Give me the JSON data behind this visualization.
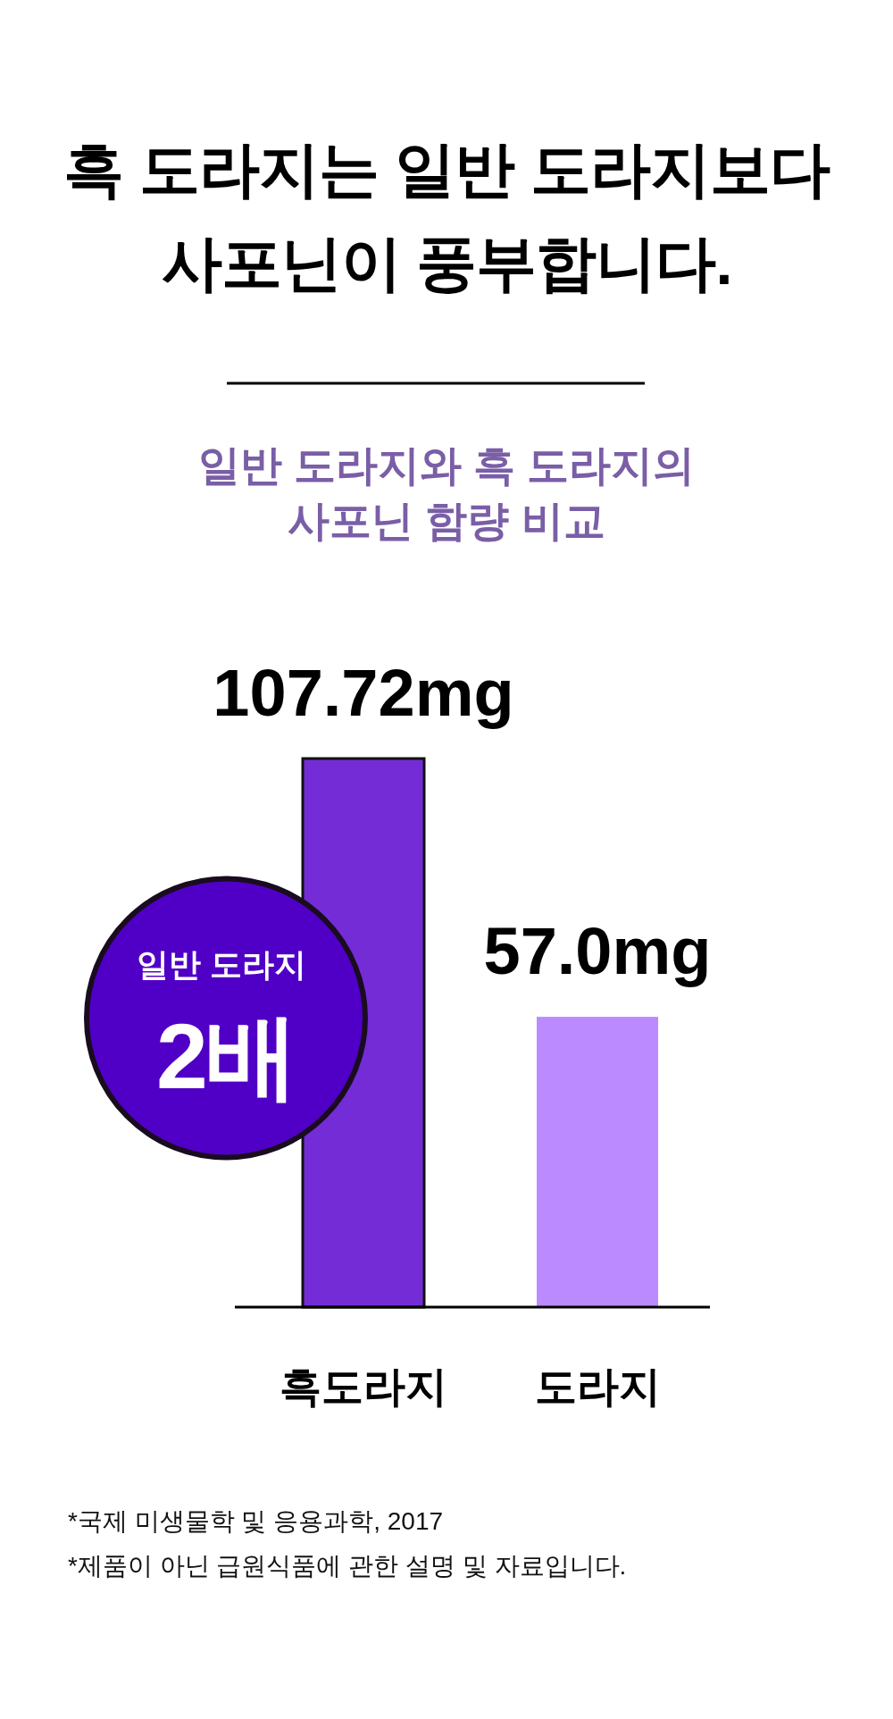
{
  "chart_data": {
    "type": "bar",
    "title": "흑 도라지는 일반 도라지보다 사포닌이 풍부합니다.",
    "subtitle": "일반 도라지와 흑 도라지의 사포닌 함량 비교",
    "categories": [
      "흑도라지",
      "도라지"
    ],
    "values": [
      107.72,
      57.0
    ],
    "colors": [
      "#742cd6",
      "#bb8aff"
    ],
    "value_labels": [
      "107.72mg",
      "57.0mg"
    ],
    "annotations": [
      "일반 도라지 2배",
      "*국제 미생물학 및 응용과학, 2017",
      "*제품이 아닌 급원식품에 관한 설명 및 자료입니다."
    ]
  }
}
